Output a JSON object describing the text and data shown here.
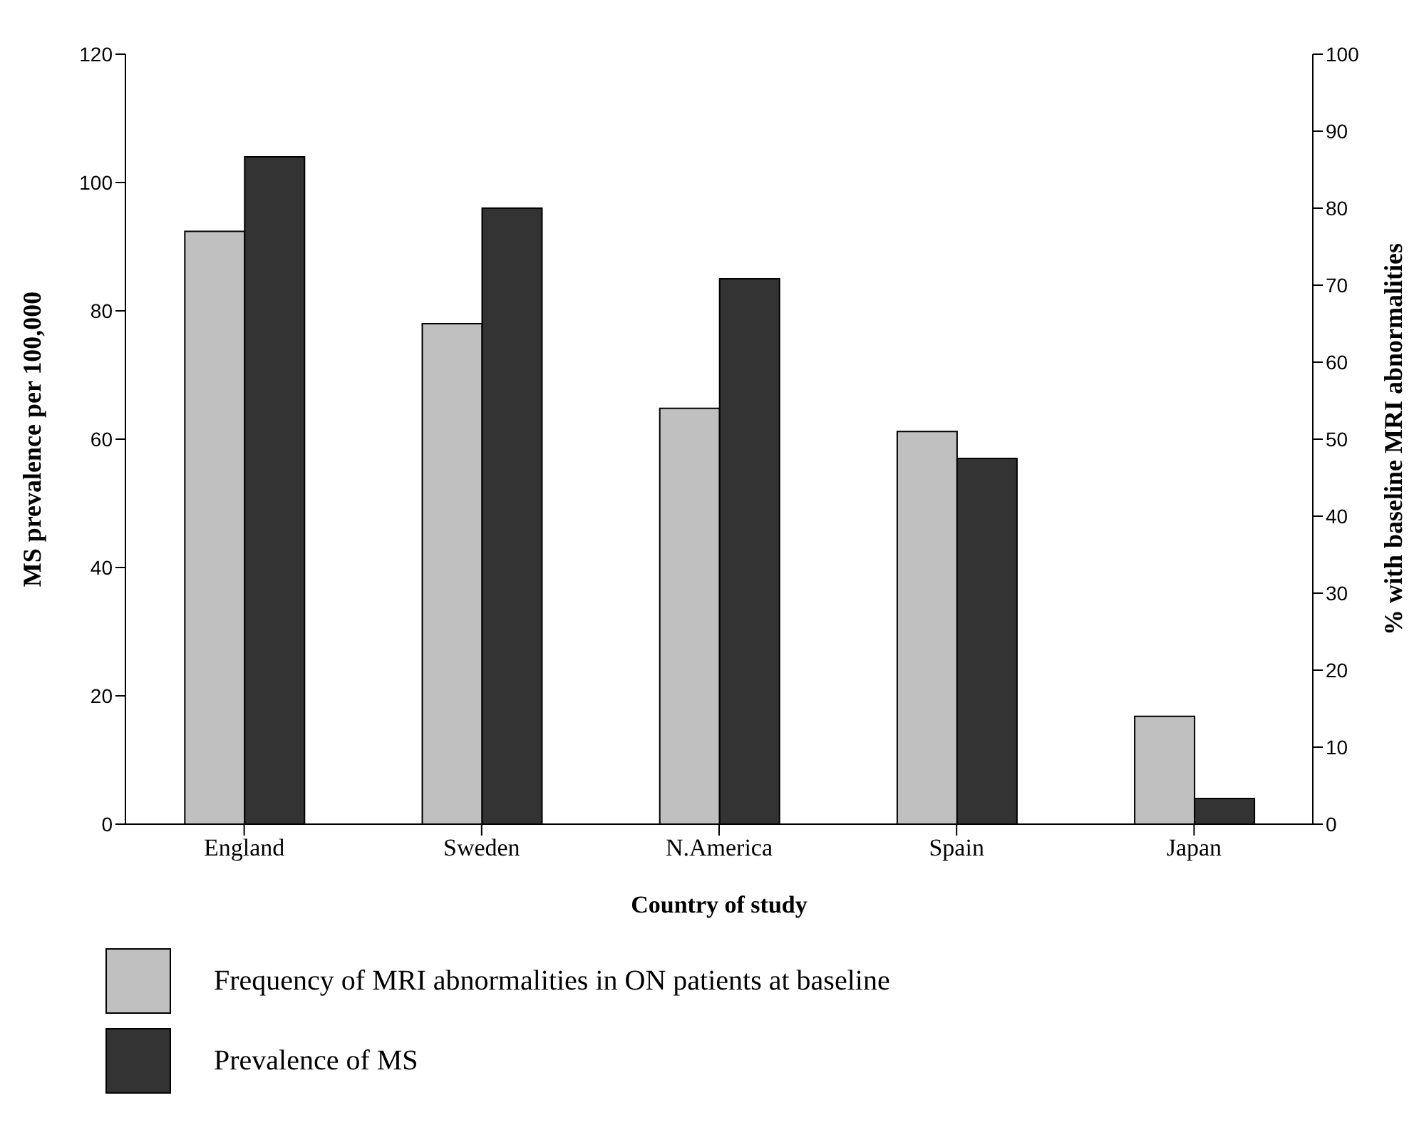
{
  "chart_data": {
    "type": "bar",
    "xlabel": "Country of study",
    "ylabel": "MS prevalence per 100,000",
    "y2label": "% with baseline MRI abnormalities",
    "categories": [
      "England",
      "Sweden",
      "N.America",
      "Spain",
      "Japan"
    ],
    "series": [
      {
        "name": "Frequency of MRI abnormalities in ON patients at baseline",
        "color": "#c0c0c0",
        "axis": "y2",
        "values": [
          77,
          65,
          54,
          51,
          14
        ]
      },
      {
        "name": "Prevalence of MS",
        "color": "#333333",
        "axis": "y",
        "values": [
          104,
          96,
          85,
          57,
          4
        ]
      }
    ],
    "ylim": [
      0,
      120
    ],
    "yticks": [
      0,
      20,
      40,
      60,
      80,
      100,
      120
    ],
    "y2lim": [
      0,
      100
    ],
    "y2ticks": [
      0,
      10,
      20,
      30,
      40,
      50,
      60,
      70,
      80,
      90,
      100
    ],
    "legend": "bottom"
  }
}
